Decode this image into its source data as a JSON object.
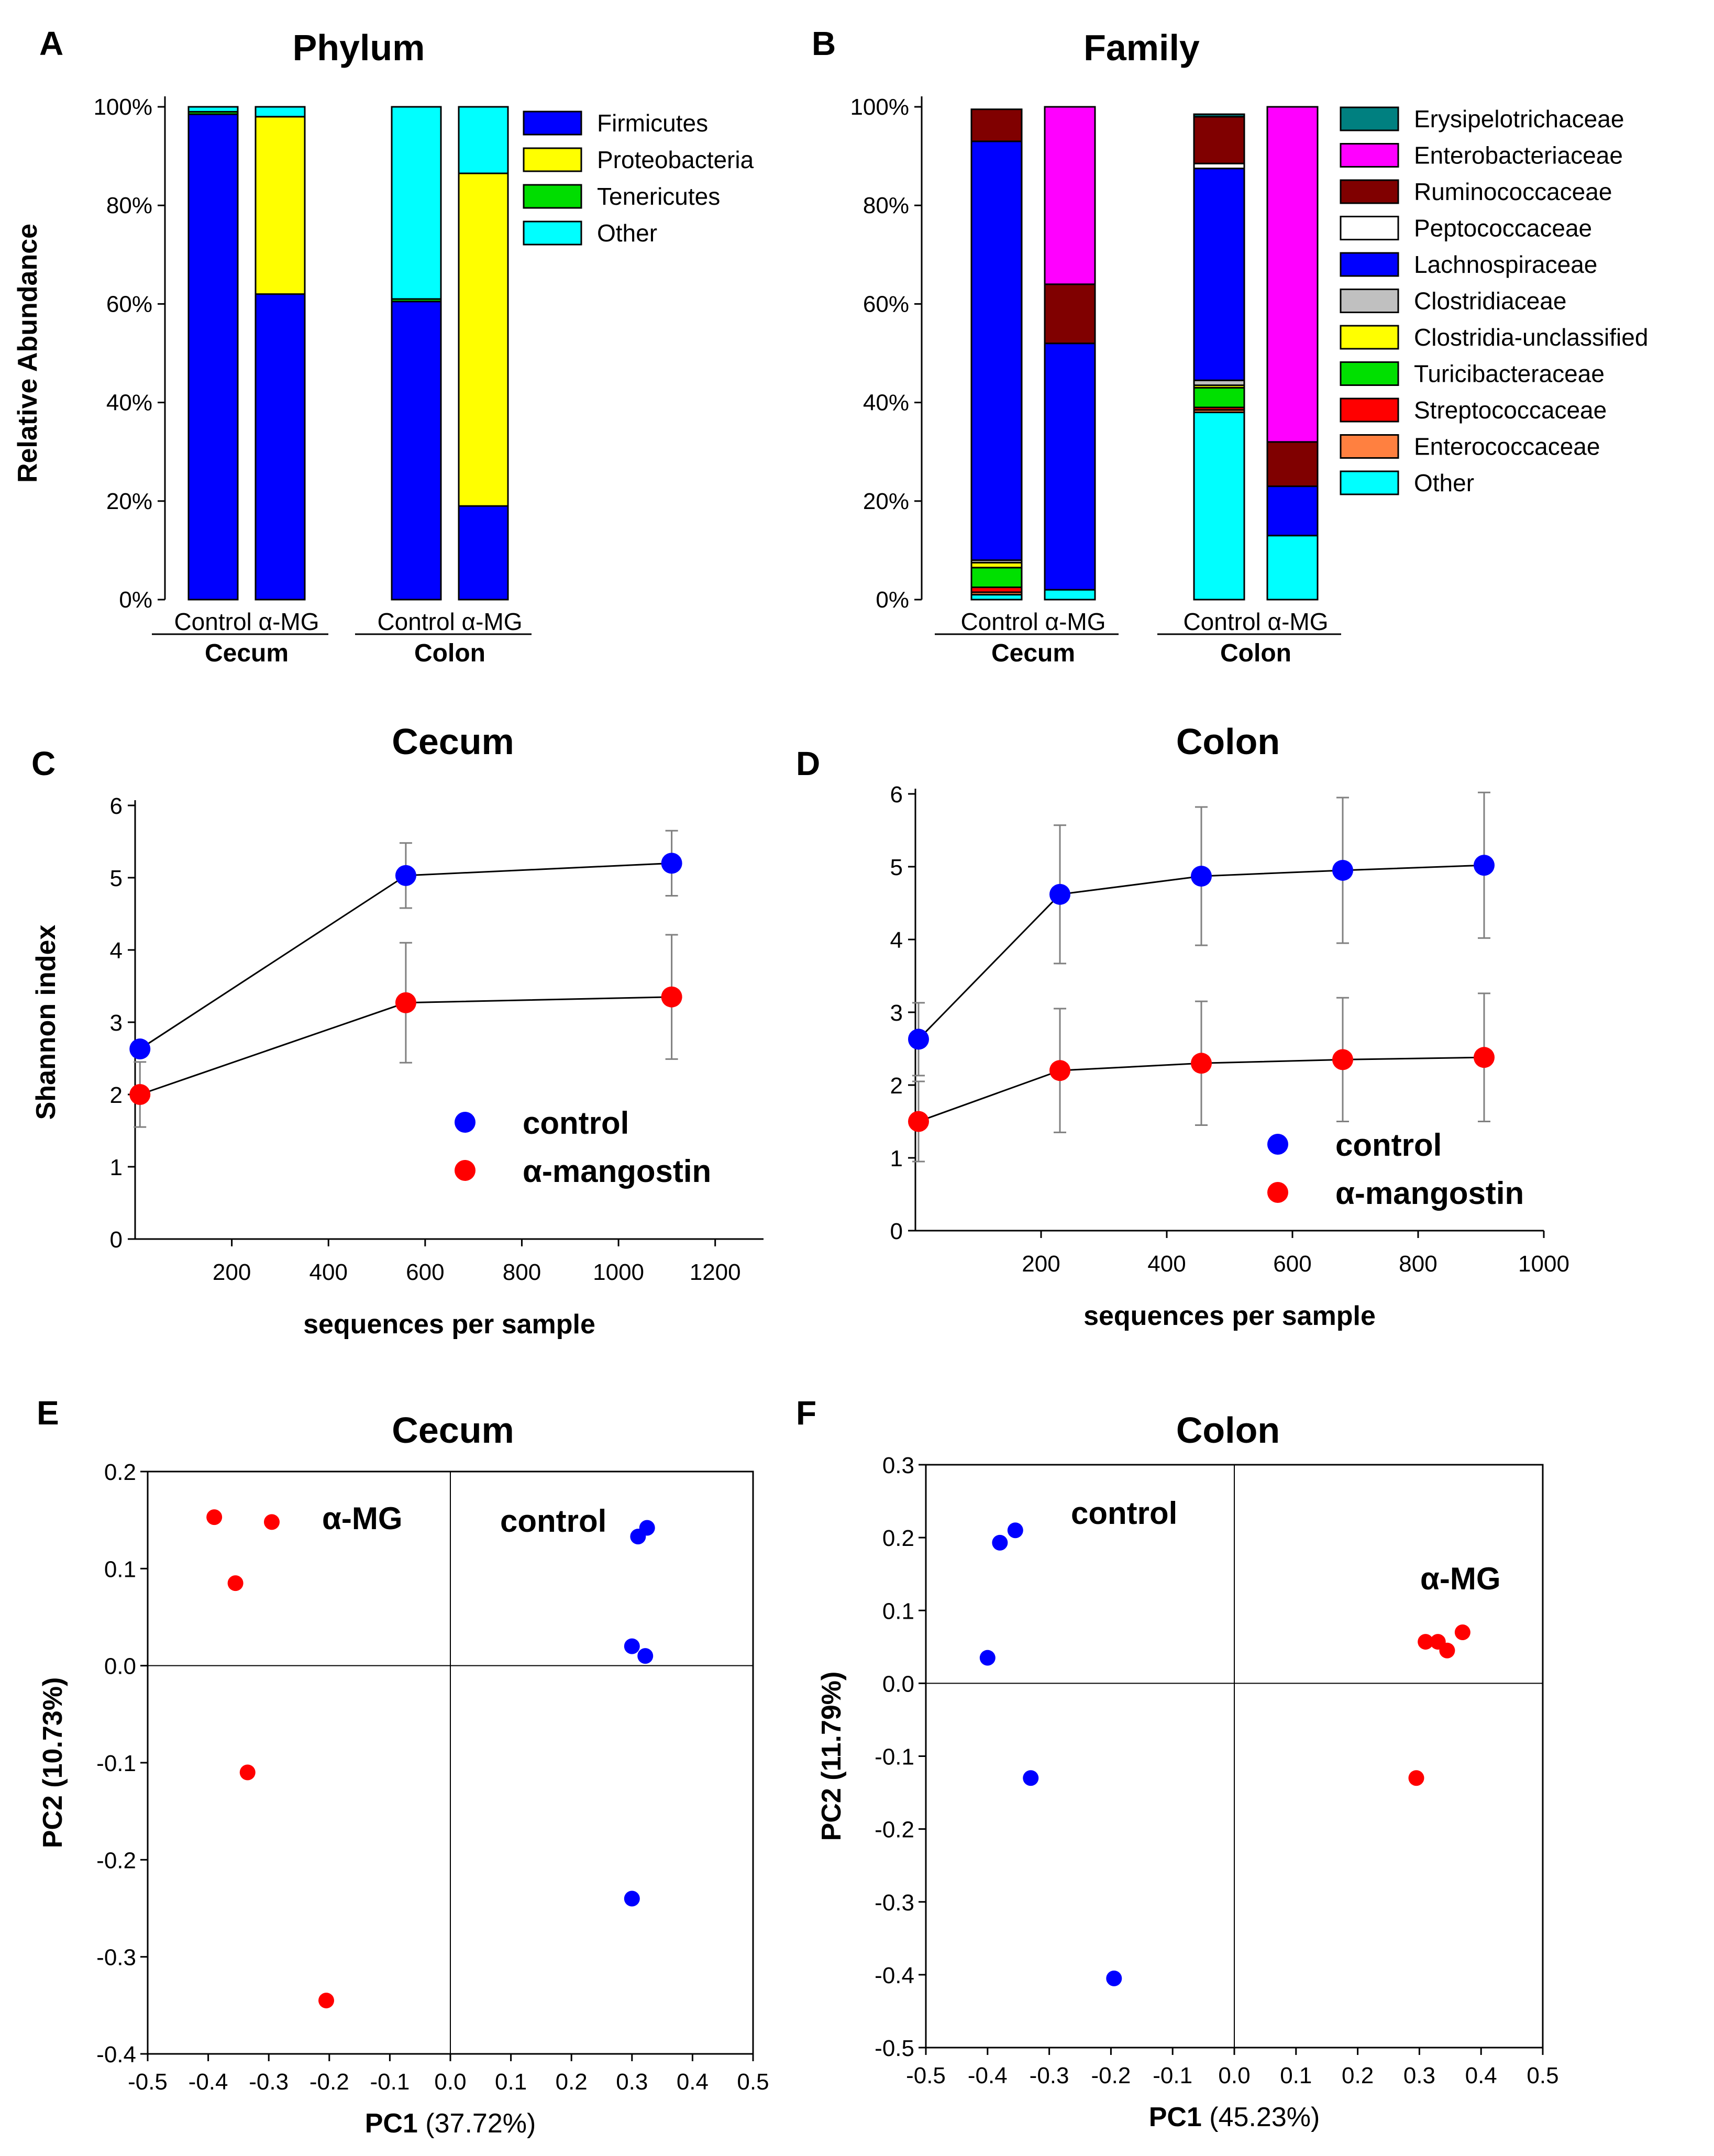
{
  "panels": {
    "A": {
      "letter": "A",
      "chart_data": {
        "type": "bar",
        "stacked": true,
        "title": "Phylum",
        "ylabel": "Relative Abundance",
        "ylim": [
          0,
          100
        ],
        "yticks": [
          "0%",
          "20%",
          "40%",
          "60%",
          "80%",
          "100%"
        ],
        "categories": [
          "Control",
          "α-MG",
          "Control",
          "α-MG"
        ],
        "groups": [
          {
            "name": "Cecum",
            "labels": [
              "Control",
              "α-MG"
            ]
          },
          {
            "name": "Colon",
            "labels": [
              "Control",
              "α-MG"
            ]
          }
        ],
        "series": [
          {
            "name": "Firmicutes",
            "color": "#0000ff",
            "values": [
              98.5,
              62,
              60.5,
              19
            ]
          },
          {
            "name": "Proteobacteria",
            "color": "#ffff00",
            "values": [
              0,
              36,
              0,
              67.5
            ]
          },
          {
            "name": "Tenericutes",
            "color": "#00dd00",
            "values": [
              0.5,
              0,
              0.5,
              0
            ]
          },
          {
            "name": "Other",
            "color": "#00ffff",
            "values": [
              1,
              2,
              39,
              13.5
            ]
          }
        ]
      }
    },
    "B": {
      "letter": "B",
      "chart_data": {
        "type": "bar",
        "stacked": true,
        "title": "Family",
        "ylim": [
          0,
          100
        ],
        "yticks": [
          "0%",
          "20%",
          "40%",
          "60%",
          "80%",
          "100%"
        ],
        "categories": [
          "Control",
          "α-MG",
          "Control",
          "α-MG"
        ],
        "groups": [
          {
            "name": "Cecum",
            "labels": [
              "Control",
              "α-MG"
            ]
          },
          {
            "name": "Colon",
            "labels": [
              "Control",
              "α-MG"
            ]
          }
        ],
        "series": [
          {
            "name": "Other",
            "color": "#00ffff",
            "values": [
              1,
              2,
              38,
              13
            ]
          },
          {
            "name": "Enterococcaceae",
            "color": "#ff8040",
            "values": [
              0.5,
              0,
              0.5,
              0
            ]
          },
          {
            "name": "Streptococcaceae",
            "color": "#ff0000",
            "values": [
              1,
              0,
              0.5,
              0
            ]
          },
          {
            "name": "Turicibacteraceae",
            "color": "#00e000",
            "values": [
              4,
              0,
              4,
              0
            ]
          },
          {
            "name": "Clostridia-unclassified",
            "color": "#ffff00",
            "values": [
              1,
              0,
              0.5,
              0
            ]
          },
          {
            "name": "Clostridiaceae",
            "color": "#c0c0c0",
            "values": [
              0.5,
              0,
              1,
              0
            ]
          },
          {
            "name": "Lachnospiraceae",
            "color": "#0000ff",
            "values": [
              85,
              50,
              43,
              10
            ]
          },
          {
            "name": "Peptococcaceae",
            "color": "#ffffff",
            "values": [
              0,
              0,
              1,
              0
            ]
          },
          {
            "name": "Ruminococcaceae",
            "color": "#800000",
            "values": [
              6.5,
              12,
              9.5,
              9
            ]
          },
          {
            "name": "Enterobacteriaceae",
            "color": "#ff00ff",
            "values": [
              0,
              36,
              0,
              68
            ]
          },
          {
            "name": "Erysipelotrichaceae",
            "color": "#008080",
            "values": [
              0,
              0,
              0.5,
              0
            ]
          }
        ]
      }
    },
    "C": {
      "letter": "C",
      "chart_data": {
        "type": "line",
        "title": "Cecum",
        "xlabel": "sequences per sample",
        "ylabel": "Shannon index",
        "xlim": [
          0,
          1300
        ],
        "ylim": [
          0,
          6
        ],
        "xticks": [
          "200",
          "400",
          "600",
          "800",
          "1000",
          "1200"
        ],
        "yticks": [
          "0",
          "1",
          "2",
          "3",
          "4",
          "5",
          "6"
        ],
        "series": [
          {
            "name": "control",
            "color": "#0000ff",
            "x": [
              10,
              560,
              1110
            ],
            "y": [
              2.63,
              5.03,
              5.2
            ],
            "err": [
              0,
              0.45,
              0.45
            ]
          },
          {
            "name": "α-mangostin",
            "color": "#ff0000",
            "x": [
              10,
              560,
              1110
            ],
            "y": [
              2.0,
              3.27,
              3.35
            ],
            "err": [
              0.45,
              0.83,
              0.86
            ]
          }
        ]
      }
    },
    "D": {
      "letter": "D",
      "chart_data": {
        "type": "line",
        "title": "Colon",
        "xlabel": "sequences per sample",
        "xlim": [
          0,
          1000
        ],
        "ylim": [
          0,
          6
        ],
        "xticks": [
          "200",
          "400",
          "600",
          "800",
          "1000"
        ],
        "yticks": [
          "0",
          "1",
          "2",
          "3",
          "4",
          "5",
          "6"
        ],
        "series": [
          {
            "name": "control",
            "color": "#0000ff",
            "x": [
              5,
              230,
              455,
              680,
              905
            ],
            "y": [
              2.63,
              4.62,
              4.87,
              4.95,
              5.02
            ],
            "err": [
              0.5,
              0.95,
              0.95,
              1.0,
              1.0
            ]
          },
          {
            "name": "α-mangostin",
            "color": "#ff0000",
            "x": [
              5,
              230,
              455,
              680,
              905
            ],
            "y": [
              1.5,
              2.2,
              2.3,
              2.35,
              2.38
            ],
            "err": [
              0.55,
              0.85,
              0.85,
              0.85,
              0.88
            ]
          }
        ]
      }
    },
    "E": {
      "letter": "E",
      "chart_data": {
        "type": "scatter",
        "title": "Cecum",
        "xlabel": "PC1",
        "xlabel_pct": "(37.72%)",
        "ylabel": "PC2 (10.73%)",
        "xlim": [
          -0.5,
          0.5
        ],
        "ylim": [
          -0.4,
          0.2
        ],
        "xticks": [
          "-0.5",
          "-0.4",
          "-0.3",
          "-0.2",
          "-0.1",
          "0.0",
          "0.1",
          "0.2",
          "0.3",
          "0.4",
          "0.5"
        ],
        "yticks": [
          "-0.4",
          "-0.3",
          "-0.2",
          "-0.1",
          "0.0",
          "0.1",
          "0.2"
        ],
        "annotations": [
          "α-MG",
          "control"
        ],
        "series": [
          {
            "name": "α-MG",
            "color": "#ff0000",
            "points": [
              [
                -0.39,
                0.153
              ],
              [
                -0.295,
                0.148
              ],
              [
                -0.355,
                0.085
              ],
              [
                -0.335,
                -0.11
              ],
              [
                -0.205,
                -0.345
              ]
            ]
          },
          {
            "name": "control",
            "color": "#0000ff",
            "points": [
              [
                0.325,
                0.142
              ],
              [
                0.31,
                0.133
              ],
              [
                0.3,
                0.02
              ],
              [
                0.322,
                0.01
              ],
              [
                0.3,
                -0.24
              ]
            ]
          }
        ]
      }
    },
    "F": {
      "letter": "F",
      "chart_data": {
        "type": "scatter",
        "title": "Colon",
        "xlabel": "PC1",
        "xlabel_pct": "(45.23%)",
        "ylabel": "PC2 (11.79%)",
        "xlim": [
          -0.5,
          0.5
        ],
        "ylim": [
          -0.5,
          0.3
        ],
        "xticks": [
          "-0.5",
          "-0.4",
          "-0.3",
          "-0.2",
          "-0.1",
          "0.0",
          "0.1",
          "0.2",
          "0.3",
          "0.4",
          "0.5"
        ],
        "yticks": [
          "-0.5",
          "-0.4",
          "-0.3",
          "-0.2",
          "-0.1",
          "0.0",
          "0.1",
          "0.2",
          "0.3"
        ],
        "annotations": [
          "control",
          "α-MG"
        ],
        "series": [
          {
            "name": "control",
            "color": "#0000ff",
            "points": [
              [
                -0.38,
                0.193
              ],
              [
                -0.355,
                0.21
              ],
              [
                -0.4,
                0.035
              ],
              [
                -0.33,
                -0.13
              ],
              [
                -0.195,
                -0.405
              ]
            ]
          },
          {
            "name": "α-MG",
            "color": "#ff0000",
            "points": [
              [
                0.31,
                0.057
              ],
              [
                0.33,
                0.057
              ],
              [
                0.345,
                0.045
              ],
              [
                0.37,
                0.07
              ],
              [
                0.295,
                -0.13
              ]
            ]
          }
        ]
      }
    }
  }
}
